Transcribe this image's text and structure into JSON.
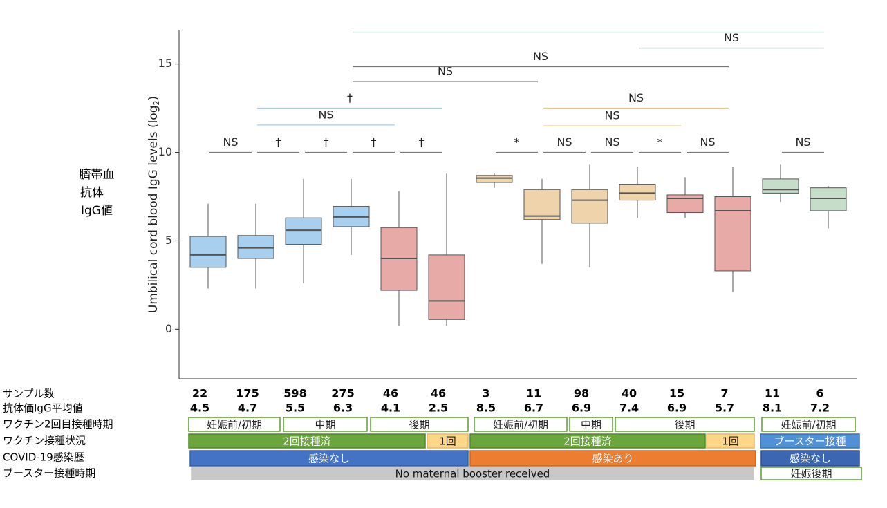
{
  "chart_data": {
    "type": "box",
    "y_label": "Umbilical cord blood IgG levels (log",
    "y_label_sub": "2",
    "y_label_end": ")",
    "ylim": [
      -2.8,
      16.9
    ],
    "yticks": [
      0,
      5,
      10,
      15
    ],
    "groups": [
      {
        "color": "#a9cfee",
        "median": 4.2,
        "q1": 3.5,
        "q3": 5.25,
        "whisker_low": 2.3,
        "whisker_high": 7.1
      },
      {
        "color": "#a9cfee",
        "median": 4.6,
        "q1": 4.0,
        "q3": 5.3,
        "whisker_low": 2.3,
        "whisker_high": 7.1
      },
      {
        "color": "#a9cfee",
        "median": 5.6,
        "q1": 4.8,
        "q3": 6.3,
        "whisker_low": 2.6,
        "whisker_high": 8.5
      },
      {
        "color": "#a9cfee",
        "median": 6.35,
        "q1": 5.8,
        "q3": 6.95,
        "whisker_low": 4.2,
        "whisker_high": 8.5
      },
      {
        "color": "#e8aaa6",
        "median": 4.0,
        "q1": 2.2,
        "q3": 5.75,
        "whisker_low": 0.2,
        "whisker_high": 7.8
      },
      {
        "color": "#e8aaa6",
        "median": 1.6,
        "q1": 0.55,
        "q3": 4.2,
        "whisker_low": 0.2,
        "whisker_high": 8.8
      },
      {
        "color": "#efd3aa",
        "median": 8.55,
        "q1": 8.3,
        "q3": 8.7,
        "whisker_low": 8.0,
        "whisker_high": 8.8
      },
      {
        "color": "#efd3aa",
        "median": 6.4,
        "q1": 6.2,
        "q3": 7.9,
        "whisker_low": 3.7,
        "whisker_high": 8.5
      },
      {
        "color": "#efd3aa",
        "median": 7.3,
        "q1": 6.0,
        "q3": 7.9,
        "whisker_low": 3.5,
        "whisker_high": 9.3
      },
      {
        "color": "#efd3aa",
        "median": 7.7,
        "q1": 7.3,
        "q3": 8.2,
        "whisker_low": 6.3,
        "whisker_high": 9.2
      },
      {
        "color": "#e8aaa6",
        "median": 7.4,
        "q1": 6.6,
        "q3": 7.6,
        "whisker_low": 6.3,
        "whisker_high": 8.6
      },
      {
        "color": "#e8aaa6",
        "median": 6.7,
        "q1": 3.3,
        "q3": 7.5,
        "whisker_low": 2.1,
        "whisker_high": 9.2
      },
      {
        "color": "#c6ddca",
        "median": 7.9,
        "q1": 7.7,
        "q3": 8.5,
        "whisker_low": 7.2,
        "whisker_high": 9.3
      },
      {
        "color": "#c6ddca",
        "median": 7.4,
        "q1": 6.7,
        "q3": 8.0,
        "whisker_low": 5.7,
        "whisker_high": 8.1
      }
    ],
    "comparisons": [
      {
        "label": "NS",
        "groups": [
          0,
          1
        ],
        "y": 10,
        "color": "#777"
      },
      {
        "label": "†",
        "groups": [
          1,
          2
        ],
        "y": 10,
        "color": "#777"
      },
      {
        "label": "†",
        "groups": [
          2,
          3
        ],
        "y": 10,
        "color": "#777"
      },
      {
        "label": "†",
        "groups": [
          3,
          4
        ],
        "y": 10,
        "color": "#777"
      },
      {
        "label": "†",
        "groups": [
          4,
          5
        ],
        "y": 10,
        "color": "#777"
      },
      {
        "label": "*",
        "groups": [
          6,
          7
        ],
        "y": 10,
        "color": "#777"
      },
      {
        "label": "NS",
        "groups": [
          7,
          8
        ],
        "y": 10,
        "color": "#777"
      },
      {
        "label": "NS",
        "groups": [
          8,
          9
        ],
        "y": 10,
        "color": "#777"
      },
      {
        "label": "*",
        "groups": [
          9,
          10
        ],
        "y": 10,
        "color": "#777"
      },
      {
        "label": "NS",
        "groups": [
          10,
          11
        ],
        "y": 10,
        "color": "#777"
      },
      {
        "label": "NS",
        "groups": [
          12,
          13
        ],
        "y": 10,
        "color": "#777"
      },
      {
        "label": "NS",
        "groups": [
          1,
          4
        ],
        "y": 11.55,
        "color": "#a9cbe8"
      },
      {
        "label": "†",
        "groups": [
          1,
          5
        ],
        "y": 12.5,
        "color": "#a9cbe8"
      },
      {
        "label": "NS",
        "groups": [
          7,
          10
        ],
        "y": 11.5,
        "color": "#e9c592"
      },
      {
        "label": "NS",
        "groups": [
          7,
          11
        ],
        "y": 12.5,
        "color": "#e9c592"
      },
      {
        "label": "NS",
        "groups": [
          3,
          7
        ],
        "y": 14.0,
        "color": "#666"
      },
      {
        "label": "NS",
        "groups": [
          3,
          11
        ],
        "y": 14.85,
        "color": "#777"
      },
      {
        "label": "NS",
        "groups": [
          9,
          13
        ],
        "y": 15.9,
        "color": "#9fc6be"
      },
      {
        "groups": [
          3,
          13
        ],
        "y": 16.8,
        "color": "#b9d6d0"
      }
    ]
  },
  "side_label": [
    "臍帯血",
    "抗体",
    "IgG値"
  ],
  "table": {
    "row_labels": [
      "サンプル数",
      "抗体価IgG平均値",
      "ワクチン2回目接種時期",
      "ワクチン接種状況",
      "COVID-19感染歴",
      "ブースター接種時期"
    ],
    "sample_counts": [
      22,
      175,
      598,
      275,
      46,
      46,
      3,
      11,
      98,
      40,
      15,
      7,
      11,
      6
    ],
    "mean_igg": [
      4.5,
      4.7,
      5.5,
      6.3,
      4.1,
      2.5,
      8.5,
      6.7,
      6.9,
      7.4,
      6.9,
      5.7,
      8.1,
      7.2
    ],
    "vaccine_timing": [
      "妊娠前/初期",
      "中期",
      "後期",
      "妊娠前/初期",
      "中期",
      "後期",
      "妊娠前/初期"
    ],
    "vaccine_status": [
      "2回接種済",
      "1回",
      "2回接種済",
      "1回",
      "ブースター接種"
    ],
    "infection": [
      "感染なし",
      "感染あり",
      "感染なし"
    ],
    "booster_timing": [
      "No maternal booster received",
      "妊娠後期"
    ]
  }
}
